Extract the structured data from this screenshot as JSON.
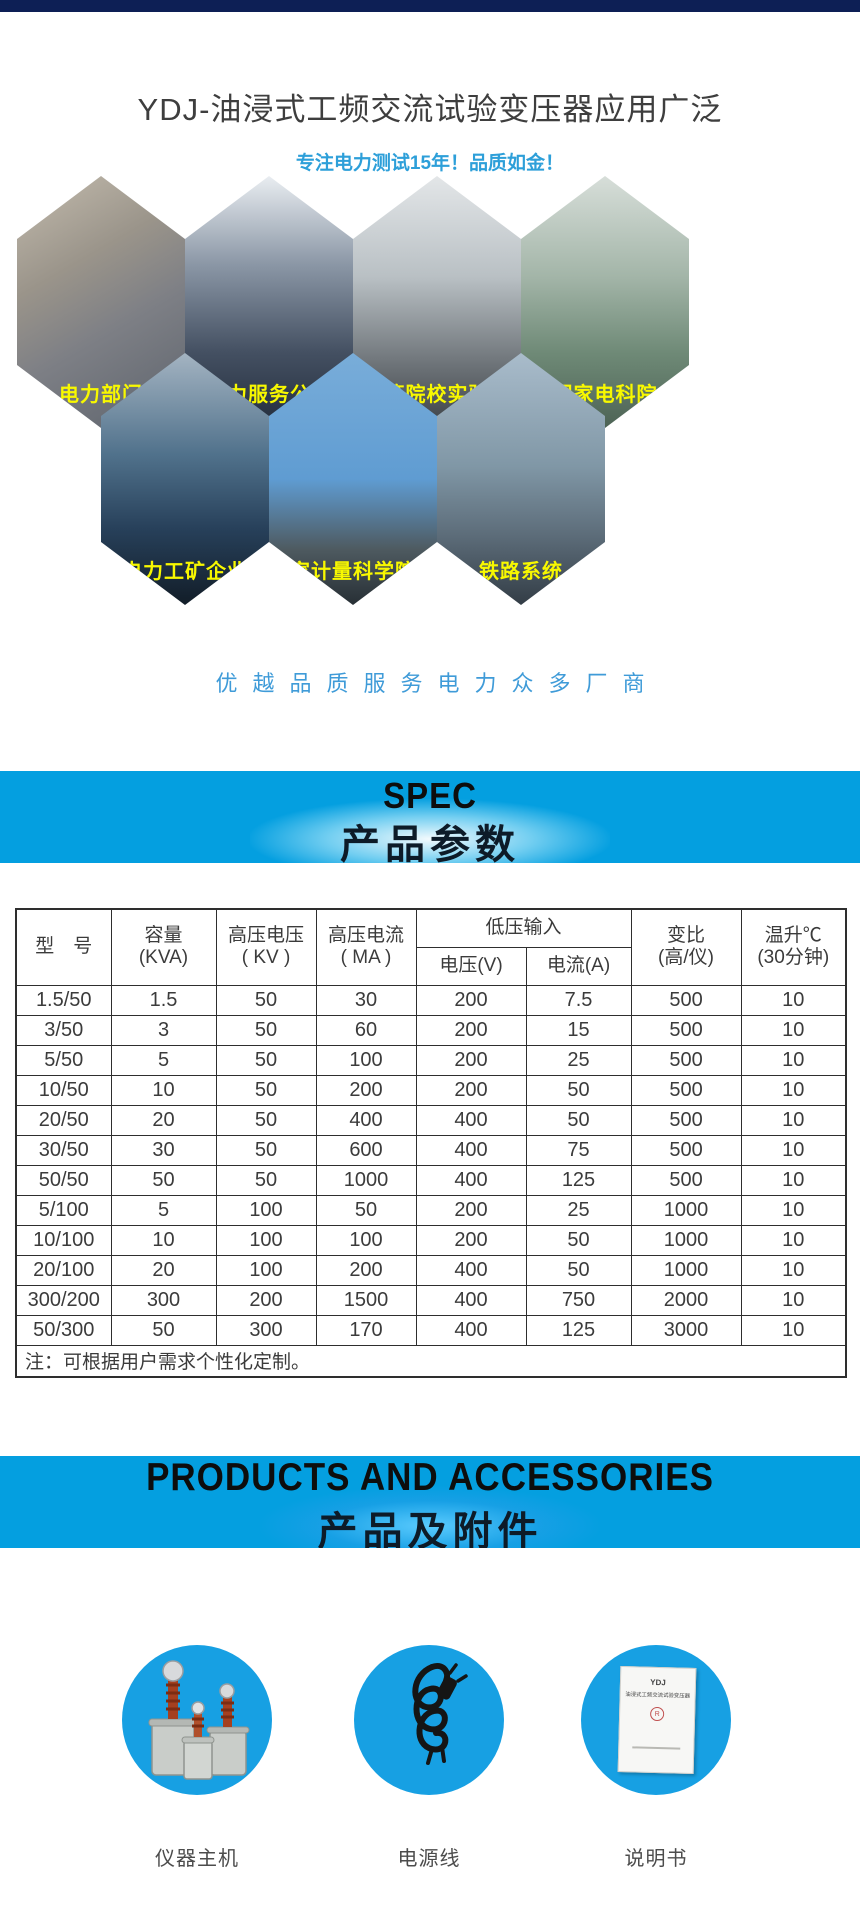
{
  "header": {
    "title": "YDJ-油浸式工频交流试验变压器应用广泛",
    "subtitle": "专注电力测试15年！品质如金！",
    "subtitle_color": "#2d9fd9",
    "topbar_color": "#0d1f55"
  },
  "applications": {
    "label_color": "#f8f800",
    "items": [
      {
        "label": "电力部门"
      },
      {
        "label": "电力服务公司"
      },
      {
        "label": "高等院校实验室"
      },
      {
        "label": "国家电科院"
      },
      {
        "label": "电力工矿企业"
      },
      {
        "label": "国家计量科学院所"
      },
      {
        "label": "铁路系统"
      }
    ],
    "tagline": "优越品质服务电力众多厂商",
    "tagline_color": "#3f9bd8"
  },
  "spec_section": {
    "banner_en": "SPEC",
    "banner_cn": "产品参数",
    "banner_bg": "#049fe0"
  },
  "table": {
    "header": {
      "model": "型　号",
      "capacity_l1": "容量",
      "capacity_l2": "(KVA)",
      "hv_voltage_l1": "高压电压",
      "hv_voltage_l2": "( KV )",
      "hv_current_l1": "高压电流",
      "hv_current_l2": "( MA )",
      "lv_group": "低压输入",
      "lv_voltage": "电压(V)",
      "lv_current": "电流(A)",
      "ratio_l1": "变比",
      "ratio_l2": "(高/仪)",
      "temp_l1": "温升℃",
      "temp_l2": "(30分钟)"
    },
    "rows": [
      [
        "1.5/50",
        "1.5",
        "50",
        "30",
        "200",
        "7.5",
        "500",
        "10"
      ],
      [
        "3/50",
        "3",
        "50",
        "60",
        "200",
        "15",
        "500",
        "10"
      ],
      [
        "5/50",
        "5",
        "50",
        "100",
        "200",
        "25",
        "500",
        "10"
      ],
      [
        "10/50",
        "10",
        "50",
        "200",
        "200",
        "50",
        "500",
        "10"
      ],
      [
        "20/50",
        "20",
        "50",
        "400",
        "400",
        "50",
        "500",
        "10"
      ],
      [
        "30/50",
        "30",
        "50",
        "600",
        "400",
        "75",
        "500",
        "10"
      ],
      [
        "50/50",
        "50",
        "50",
        "1000",
        "400",
        "125",
        "500",
        "10"
      ],
      [
        "5/100",
        "5",
        "100",
        "50",
        "200",
        "25",
        "1000",
        "10"
      ],
      [
        "10/100",
        "10",
        "100",
        "100",
        "200",
        "50",
        "1000",
        "10"
      ],
      [
        "20/100",
        "20",
        "100",
        "200",
        "400",
        "50",
        "1000",
        "10"
      ],
      [
        "300/200",
        "300",
        "200",
        "1500",
        "400",
        "750",
        "2000",
        "10"
      ],
      [
        "50/300",
        "50",
        "300",
        "170",
        "400",
        "125",
        "3000",
        "10"
      ]
    ],
    "note": "注：可根据用户需求个性化定制。"
  },
  "accessories_section": {
    "banner_en": "PRODUCTS AND ACCESSORIES",
    "banner_cn": "产品及附件",
    "circle_color": "#17a0e3",
    "items": [
      {
        "label": "仪器主机"
      },
      {
        "label": "电源线"
      },
      {
        "label": "说明书",
        "cover_line1": "YDJ",
        "cover_line2": "油浸式工频交流试验变压器",
        "cover_logo": "R"
      }
    ]
  }
}
